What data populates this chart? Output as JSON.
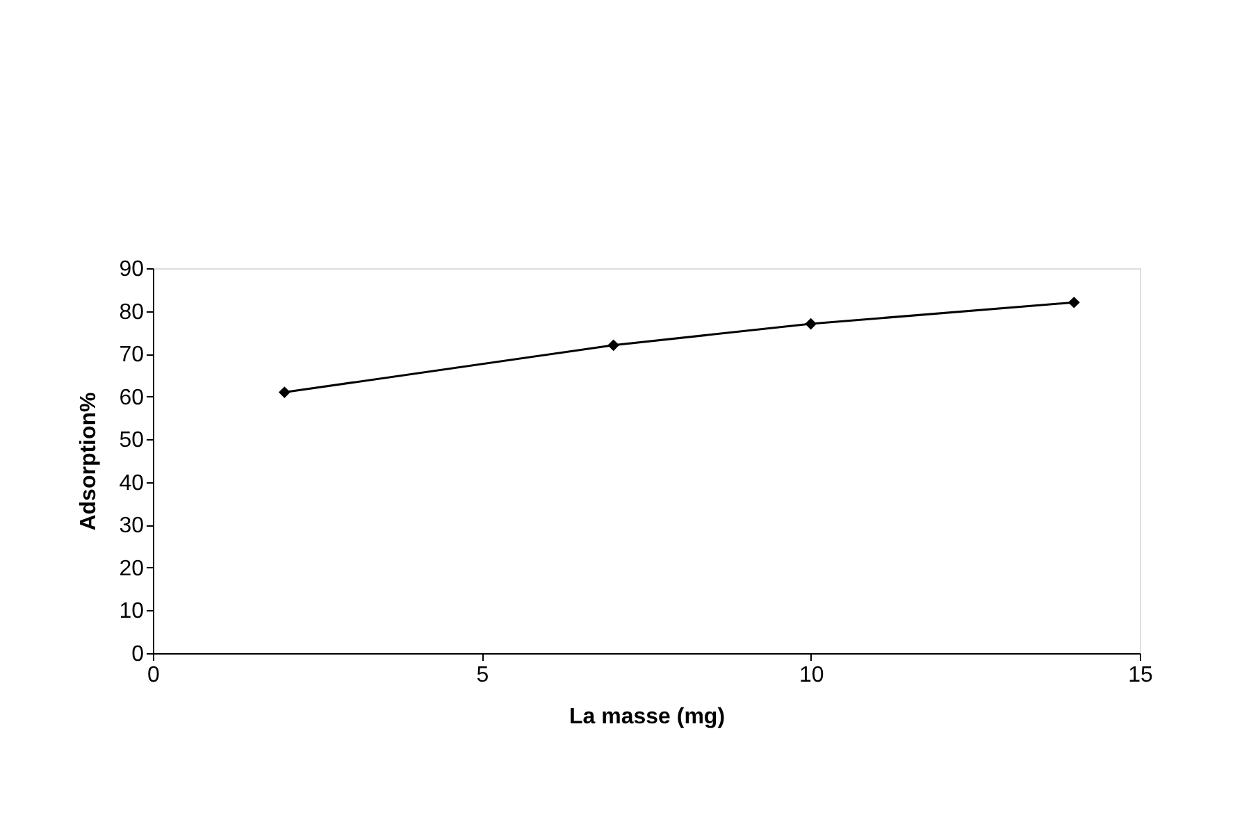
{
  "chart_data": {
    "type": "line",
    "xlabel": "La masse (mg)",
    "ylabel": "Adsorption%",
    "x": [
      2,
      7,
      10,
      14
    ],
    "series": [
      {
        "color": "#000000",
        "values": [
          61,
          72,
          77,
          82
        ]
      }
    ],
    "xlim": [
      0,
      15
    ],
    "xticks": [
      0,
      5,
      10,
      15
    ],
    "ylim": [
      0,
      90
    ],
    "yticks": [
      0,
      10,
      20,
      30,
      40,
      50,
      60,
      70,
      80,
      90
    ],
    "grid": false,
    "legend": false,
    "marker": "diamond",
    "line_style": "solid"
  }
}
